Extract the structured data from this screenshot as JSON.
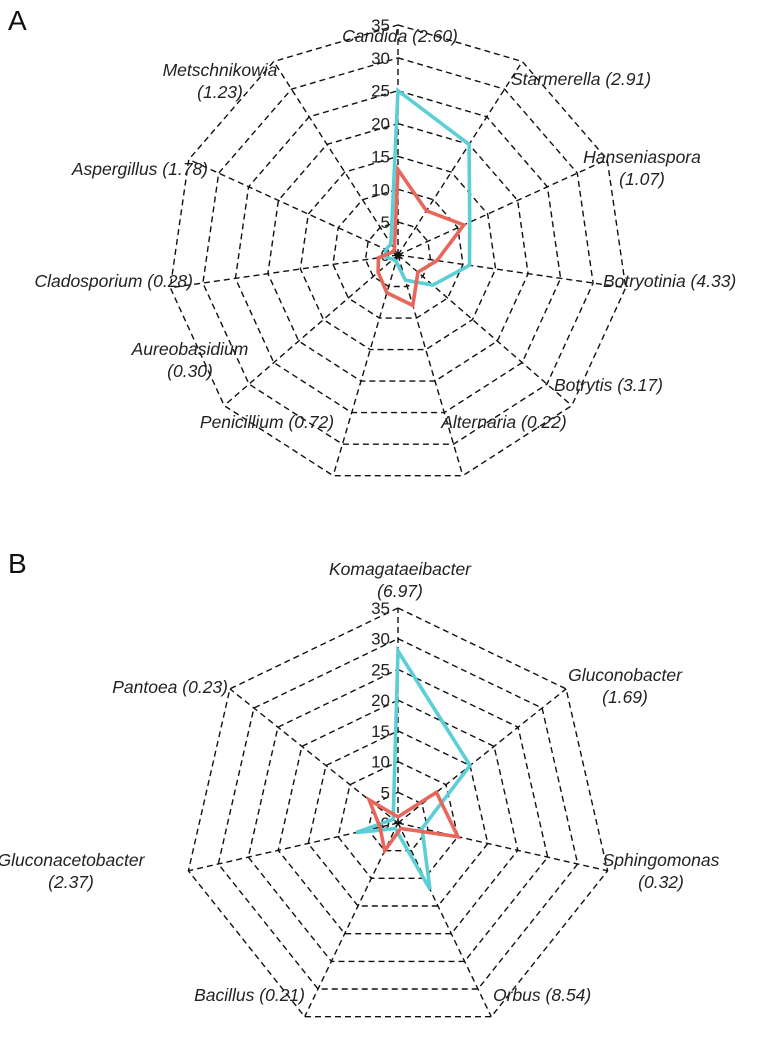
{
  "colors": {
    "series_red": "#e8675b",
    "series_cyan": "#5ccfd6",
    "grid": "#111111"
  },
  "chart_data": [
    {
      "type": "radar",
      "panel": "A",
      "categories": [
        {
          "name": "Candida",
          "value_label": "(2.60)"
        },
        {
          "name": "Starmerella",
          "value_label": "(2.91)"
        },
        {
          "name": "Hanseniaspora",
          "value_label": "(1.07)"
        },
        {
          "name": "Botryotinia",
          "value_label": "(4.33)"
        },
        {
          "name": "Botrytis",
          "value_label": "(3.17)"
        },
        {
          "name": "Alternaria",
          "value_label": "(0.22)"
        },
        {
          "name": "Penicillium",
          "value_label": "(0.72)"
        },
        {
          "name": "Aureobasidium",
          "value_label": "(0.30)"
        },
        {
          "name": "Cladosporium",
          "value_label": "(0.28)"
        },
        {
          "name": "Aspergillus",
          "value_label": "(1.78)"
        },
        {
          "name": "Metschnikowia",
          "value_label": "(1.23)"
        }
      ],
      "ticks": [
        0,
        5,
        10,
        15,
        20,
        25,
        30,
        35
      ],
      "rlim": [
        0,
        35
      ],
      "grid": true,
      "series": [
        {
          "color": "#5ccfd6",
          "values": [
            25,
            20,
            12,
            11,
            7,
            4,
            1,
            1,
            2,
            2,
            2
          ]
        },
        {
          "color": "#e8675b",
          "values": [
            13,
            8,
            11,
            6,
            4,
            8,
            6,
            4,
            3,
            1,
            1
          ]
        }
      ]
    },
    {
      "type": "radar",
      "panel": "B",
      "categories": [
        {
          "name": "Komagataeibacter",
          "value_label": "(6.97)"
        },
        {
          "name": "Gluconobacter",
          "value_label": "(1.69)"
        },
        {
          "name": "Sphingomonas",
          "value_label": "(0.32)"
        },
        {
          "name": "Orbus",
          "value_label": "(8.54)"
        },
        {
          "name": "Bacillus",
          "value_label": "(0.21)"
        },
        {
          "name": "Gluconacetobacter",
          "value_label": "(2.37)"
        },
        {
          "name": "Pantoea",
          "value_label": "(0.23)"
        }
      ],
      "ticks": [
        0,
        5,
        10,
        15,
        20,
        25,
        30,
        35
      ],
      "rlim": [
        0,
        35
      ],
      "grid": true,
      "series": [
        {
          "color": "#5ccfd6",
          "values": [
            28,
            15,
            4,
            12,
            1,
            7,
            1
          ]
        },
        {
          "color": "#e8675b",
          "values": [
            1,
            8,
            10,
            1,
            5,
            3,
            6
          ]
        }
      ]
    }
  ]
}
